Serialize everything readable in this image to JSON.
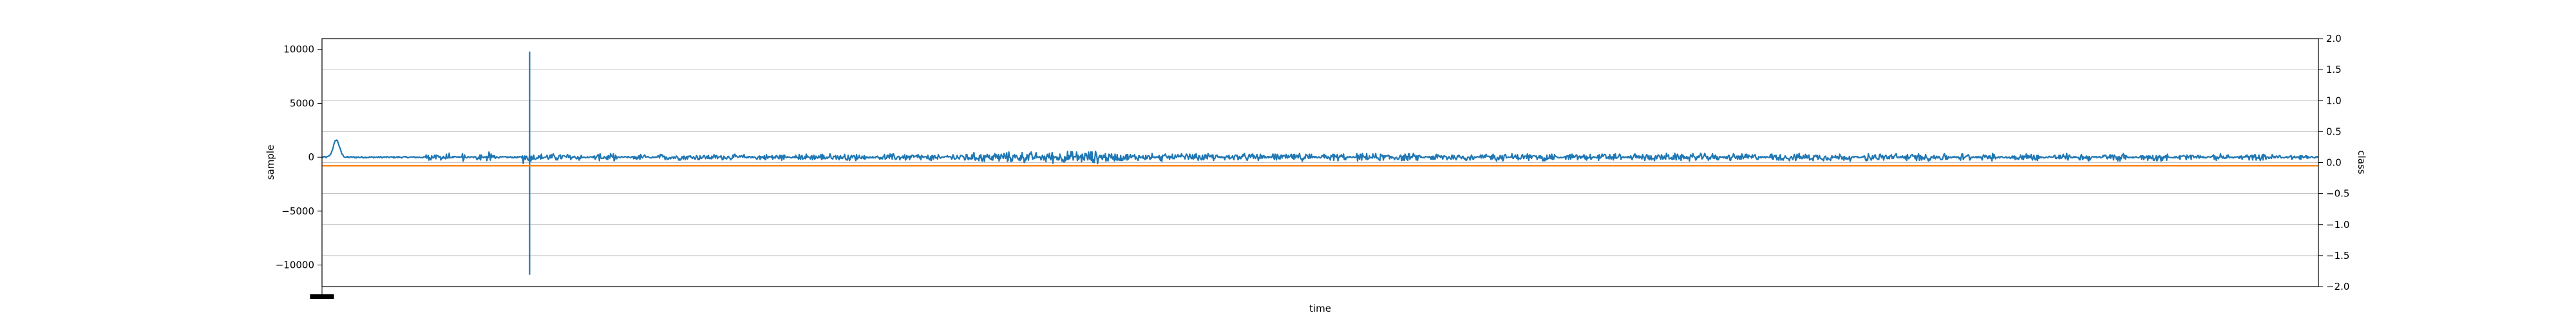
{
  "chart_data": {
    "type": "line",
    "xlabel": "time",
    "ylabel": "sample",
    "y2label": "class",
    "x_ticks": [],
    "ylim": [
      -12000,
      11000
    ],
    "y_ticks": [
      -10000,
      -5000,
      0,
      5000,
      10000
    ],
    "y_tick_labels": [
      "−10000",
      "−5000",
      "0",
      "5000",
      "10000"
    ],
    "y2lim": [
      -2.0,
      2.0
    ],
    "y2_ticks": [
      -2.0,
      -1.5,
      -1.0,
      -0.5,
      0.0,
      0.5,
      1.0,
      1.5,
      2.0
    ],
    "y2_tick_labels": [
      "−2.0",
      "−1.5",
      "−1.0",
      "−0.5",
      "0.0",
      "0.5",
      "1.0",
      "1.5",
      "2.0"
    ],
    "grid": true,
    "x_range": [
      0,
      1000
    ],
    "series": [
      {
        "axis": "left",
        "color": "#1f77b4",
        "description": "audio sample amplitude, mostly within ±700 with a spike near x=104",
        "spike": {
          "x": 104,
          "top": 9800,
          "bottom": -10900
        },
        "envelope_x": [
          0,
          4,
          6,
          7.5,
          9,
          11,
          14,
          18,
          104,
          105,
          200,
          300,
          388,
          400,
          500,
          600,
          700,
          800,
          900,
          1000
        ],
        "envelope_amp": [
          150,
          500,
          1200,
          1700,
          1100,
          400,
          200,
          150,
          700,
          400,
          300,
          400,
          700,
          400,
          400,
          400,
          400,
          400,
          400,
          300
        ],
        "bursts": [
          [
            52,
            64
          ],
          [
            70,
            72
          ],
          [
            77,
            80
          ],
          [
            82,
            87
          ],
          [
            100,
            130
          ],
          [
            136,
            148
          ],
          [
            156,
            162
          ],
          [
            168,
            212
          ],
          [
            216,
            232
          ],
          [
            237,
            272
          ],
          [
            278,
            301
          ],
          [
            303,
            310
          ],
          [
            313,
            358
          ],
          [
            360,
            416
          ],
          [
            419,
            449
          ],
          [
            452,
            472
          ],
          [
            476,
            496
          ],
          [
            500,
            513
          ],
          [
            518,
            550
          ],
          [
            555,
            577
          ],
          [
            580,
            593
          ],
          [
            596,
            618
          ],
          [
            623,
            636
          ],
          [
            639,
            651
          ],
          [
            655,
            700
          ],
          [
            703,
            720
          ],
          [
            725,
            766
          ],
          [
            772,
            815
          ],
          [
            820,
            826
          ],
          [
            831,
            839
          ],
          [
            845,
            860
          ],
          [
            865,
            876
          ],
          [
            880,
            887
          ],
          [
            892,
            904
          ],
          [
            911,
            925
          ],
          [
            929,
            941
          ],
          [
            947,
            955
          ],
          [
            960,
            981
          ],
          [
            985,
            996
          ]
        ]
      },
      {
        "axis": "right",
        "color": "#ff7f0e",
        "x": [
          0,
          1000
        ],
        "y": [
          -0.05,
          -0.05
        ]
      }
    ],
    "x_marker": {
      "x_range": [
        -6,
        6
      ],
      "color": "#000000"
    }
  }
}
